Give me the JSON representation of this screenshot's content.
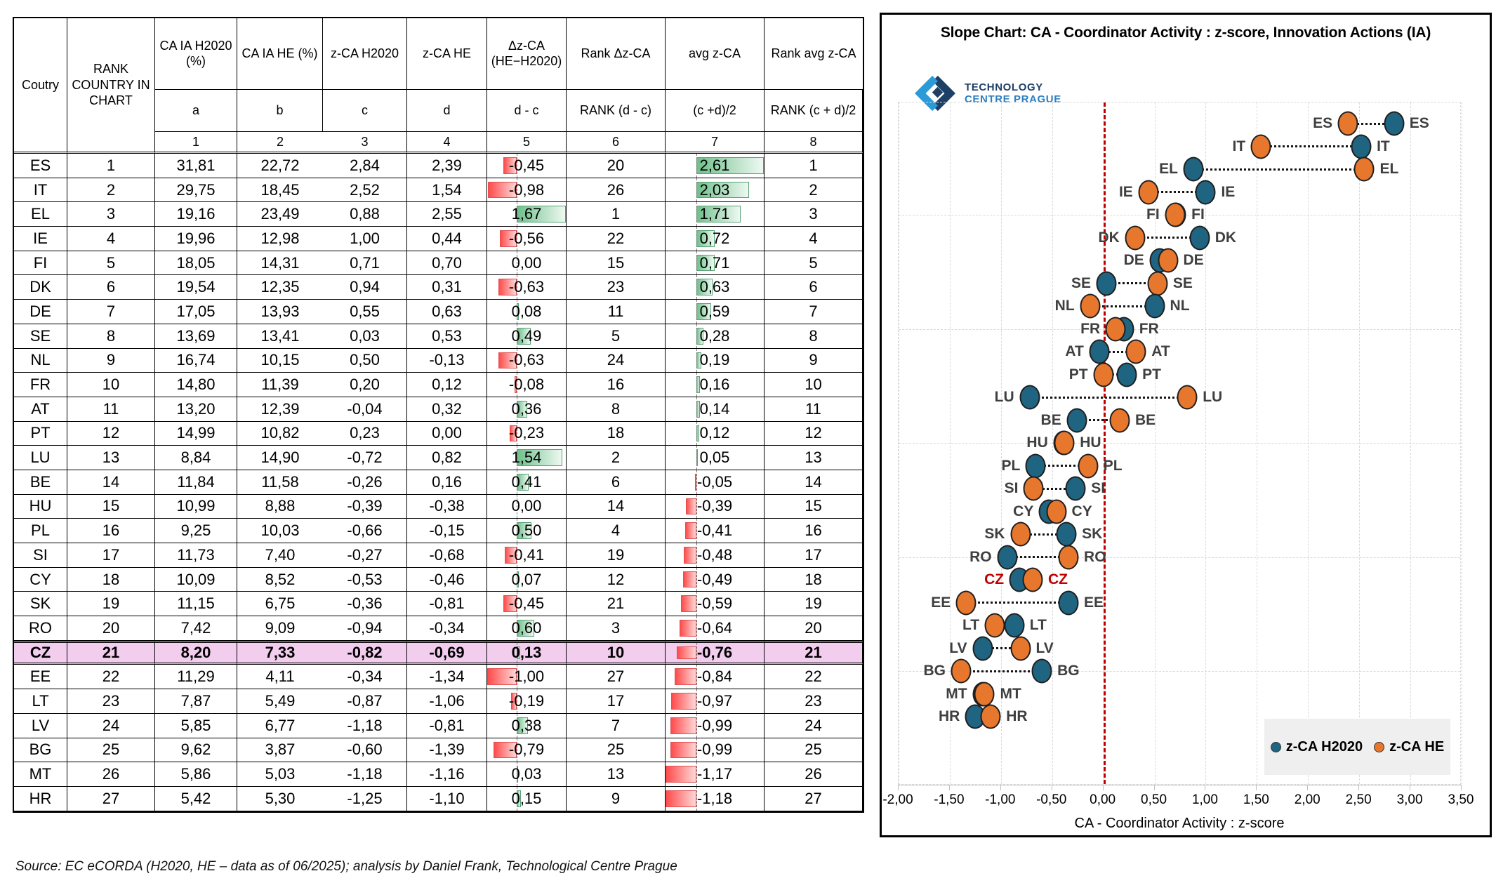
{
  "source_note": "Source: EC eCORDA (H2020, HE – data as of 06/2025); analysis by Daniel Frank, Technological Centre Prague",
  "logo": {
    "line1": "TECHNOLOGY",
    "line2": "CENTRE PRAGUE"
  },
  "colors": {
    "h2020": "#1f6480",
    "he": "#e8772e",
    "highlight_row": "#f2cdee",
    "cz_label": "#c00000",
    "red_line": "#c00000",
    "label": "#3f3f3f"
  },
  "table": {
    "header": {
      "col1": "Coutry",
      "col2": "RANK COUNTRY IN CHART",
      "cols": [
        {
          "title": "CA IA H2020 (%)",
          "sub": "a",
          "num": "1"
        },
        {
          "title": "CA IA HE (%)",
          "sub": "b",
          "num": "2"
        },
        {
          "title": "z-CA H2020",
          "sub": "c",
          "num": "3"
        },
        {
          "title": "z-CA HE",
          "sub": "d",
          "num": "4"
        },
        {
          "title": "Δz-CA (HE−H2020)",
          "sub": "d - c",
          "num": "5"
        },
        {
          "title": "Rank Δz-CA",
          "sub": "RANK (d - c)",
          "num": "6"
        },
        {
          "title": "avg z-CA",
          "sub": "(c +d)/2",
          "num": "7"
        },
        {
          "title": "Rank avg z-CA",
          "sub": "RANK (c + d)/2",
          "num": "8"
        }
      ]
    },
    "highlight_country": "CZ",
    "rows": [
      {
        "code": "ES",
        "rank": "1",
        "cells": [
          "31,81",
          "22,72",
          "2,84",
          "2,39",
          "-0,45",
          "20",
          "2,61",
          "1"
        ]
      },
      {
        "code": "IT",
        "rank": "2",
        "cells": [
          "29,75",
          "18,45",
          "2,52",
          "1,54",
          "-0,98",
          "26",
          "2,03",
          "2"
        ]
      },
      {
        "code": "EL",
        "rank": "3",
        "cells": [
          "19,16",
          "23,49",
          "0,88",
          "2,55",
          "1,67",
          "1",
          "1,71",
          "3"
        ]
      },
      {
        "code": "IE",
        "rank": "4",
        "cells": [
          "19,96",
          "12,98",
          "1,00",
          "0,44",
          "-0,56",
          "22",
          "0,72",
          "4"
        ]
      },
      {
        "code": "FI",
        "rank": "5",
        "cells": [
          "18,05",
          "14,31",
          "0,71",
          "0,70",
          "0,00",
          "15",
          "0,71",
          "5"
        ]
      },
      {
        "code": "DK",
        "rank": "6",
        "cells": [
          "19,54",
          "12,35",
          "0,94",
          "0,31",
          "-0,63",
          "23",
          "0,63",
          "6"
        ]
      },
      {
        "code": "DE",
        "rank": "7",
        "cells": [
          "17,05",
          "13,93",
          "0,55",
          "0,63",
          "0,08",
          "11",
          "0,59",
          "7"
        ]
      },
      {
        "code": "SE",
        "rank": "8",
        "cells": [
          "13,69",
          "13,41",
          "0,03",
          "0,53",
          "0,49",
          "5",
          "0,28",
          "8"
        ]
      },
      {
        "code": "NL",
        "rank": "9",
        "cells": [
          "16,74",
          "10,15",
          "0,50",
          "-0,13",
          "-0,63",
          "24",
          "0,19",
          "9"
        ]
      },
      {
        "code": "FR",
        "rank": "10",
        "cells": [
          "14,80",
          "11,39",
          "0,20",
          "0,12",
          "-0,08",
          "16",
          "0,16",
          "10"
        ]
      },
      {
        "code": "AT",
        "rank": "11",
        "cells": [
          "13,20",
          "12,39",
          "-0,04",
          "0,32",
          "0,36",
          "8",
          "0,14",
          "11"
        ]
      },
      {
        "code": "PT",
        "rank": "12",
        "cells": [
          "14,99",
          "10,82",
          "0,23",
          "0,00",
          "-0,23",
          "18",
          "0,12",
          "12"
        ]
      },
      {
        "code": "LU",
        "rank": "13",
        "cells": [
          "8,84",
          "14,90",
          "-0,72",
          "0,82",
          "1,54",
          "2",
          "0,05",
          "13"
        ]
      },
      {
        "code": "BE",
        "rank": "14",
        "cells": [
          "11,84",
          "11,58",
          "-0,26",
          "0,16",
          "0,41",
          "6",
          "-0,05",
          "14"
        ]
      },
      {
        "code": "HU",
        "rank": "15",
        "cells": [
          "10,99",
          "8,88",
          "-0,39",
          "-0,38",
          "0,00",
          "14",
          "-0,39",
          "15"
        ]
      },
      {
        "code": "PL",
        "rank": "16",
        "cells": [
          "9,25",
          "10,03",
          "-0,66",
          "-0,15",
          "0,50",
          "4",
          "-0,41",
          "16"
        ]
      },
      {
        "code": "SI",
        "rank": "17",
        "cells": [
          "11,73",
          "7,40",
          "-0,27",
          "-0,68",
          "-0,41",
          "19",
          "-0,48",
          "17"
        ]
      },
      {
        "code": "CY",
        "rank": "18",
        "cells": [
          "10,09",
          "8,52",
          "-0,53",
          "-0,46",
          "0,07",
          "12",
          "-0,49",
          "18"
        ]
      },
      {
        "code": "SK",
        "rank": "19",
        "cells": [
          "11,15",
          "6,75",
          "-0,36",
          "-0,81",
          "-0,45",
          "21",
          "-0,59",
          "19"
        ]
      },
      {
        "code": "RO",
        "rank": "20",
        "cells": [
          "7,42",
          "9,09",
          "-0,94",
          "-0,34",
          "0,60",
          "3",
          "-0,64",
          "20"
        ]
      },
      {
        "code": "CZ",
        "rank": "21",
        "cells": [
          "8,20",
          "7,33",
          "-0,82",
          "-0,69",
          "0,13",
          "10",
          "-0,76",
          "21"
        ]
      },
      {
        "code": "EE",
        "rank": "22",
        "cells": [
          "11,29",
          "4,11",
          "-0,34",
          "-1,34",
          "-1,00",
          "27",
          "-0,84",
          "22"
        ]
      },
      {
        "code": "LT",
        "rank": "23",
        "cells": [
          "7,87",
          "5,49",
          "-0,87",
          "-1,06",
          "-0,19",
          "17",
          "-0,97",
          "23"
        ]
      },
      {
        "code": "LV",
        "rank": "24",
        "cells": [
          "5,85",
          "6,77",
          "-1,18",
          "-0,81",
          "0,38",
          "7",
          "-0,99",
          "24"
        ]
      },
      {
        "code": "BG",
        "rank": "25",
        "cells": [
          "9,62",
          "3,87",
          "-0,60",
          "-1,39",
          "-0,79",
          "25",
          "-0,99",
          "25"
        ]
      },
      {
        "code": "MT",
        "rank": "26",
        "cells": [
          "5,86",
          "5,03",
          "-1,18",
          "-1,16",
          "0,03",
          "13",
          "-1,17",
          "26"
        ]
      },
      {
        "code": "HR",
        "rank": "27",
        "cells": [
          "5,42",
          "5,30",
          "-1,25",
          "-1,10",
          "0,15",
          "9",
          "-1,18",
          "27"
        ]
      }
    ]
  },
  "chart_data": {
    "type": "scatter",
    "subtype": "slope-dot-plot",
    "title": "Slope Chart: CA - Coordinator Activity : z-score, Innovation Actions (IA)",
    "xlabel": "CA - Coordinator Activity : z-score",
    "xlim": [
      -2.0,
      3.5
    ],
    "x_tick_step": 0.5,
    "x_ticks": [
      "-2,00",
      "-1,50",
      "-1,00",
      "-0,50",
      "0,00",
      "0,50",
      "1,00",
      "1,50",
      "2,00",
      "2,50",
      "3,00",
      "3,50"
    ],
    "grid": "dashed, vertical every 0.5, horizontal every 5 countries",
    "zero_reference_line": 0.0,
    "legend_position": "bottom-right",
    "legend": [
      {
        "label": "z-CA H2020",
        "color": "#1f6480"
      },
      {
        "label": "z-CA HE",
        "color": "#e8772e"
      }
    ],
    "highlight_country": "CZ",
    "countries": [
      {
        "code": "ES",
        "h2020": 2.84,
        "he": 2.39
      },
      {
        "code": "IT",
        "h2020": 2.52,
        "he": 1.54
      },
      {
        "code": "EL",
        "h2020": 0.88,
        "he": 2.55
      },
      {
        "code": "IE",
        "h2020": 1.0,
        "he": 0.44
      },
      {
        "code": "FI",
        "h2020": 0.71,
        "he": 0.7
      },
      {
        "code": "DK",
        "h2020": 0.94,
        "he": 0.31
      },
      {
        "code": "DE",
        "h2020": 0.55,
        "he": 0.63
      },
      {
        "code": "SE",
        "h2020": 0.03,
        "he": 0.53
      },
      {
        "code": "NL",
        "h2020": 0.5,
        "he": -0.13
      },
      {
        "code": "FR",
        "h2020": 0.2,
        "he": 0.12
      },
      {
        "code": "AT",
        "h2020": -0.04,
        "he": 0.32
      },
      {
        "code": "PT",
        "h2020": 0.23,
        "he": 0.0
      },
      {
        "code": "LU",
        "h2020": -0.72,
        "he": 0.82
      },
      {
        "code": "BE",
        "h2020": -0.26,
        "he": 0.16
      },
      {
        "code": "HU",
        "h2020": -0.39,
        "he": -0.38
      },
      {
        "code": "PL",
        "h2020": -0.66,
        "he": -0.15
      },
      {
        "code": "SI",
        "h2020": -0.27,
        "he": -0.68
      },
      {
        "code": "CY",
        "h2020": -0.53,
        "he": -0.46
      },
      {
        "code": "SK",
        "h2020": -0.36,
        "he": -0.81
      },
      {
        "code": "RO",
        "h2020": -0.94,
        "he": -0.34
      },
      {
        "code": "CZ",
        "h2020": -0.82,
        "he": -0.69
      },
      {
        "code": "EE",
        "h2020": -0.34,
        "he": -1.34
      },
      {
        "code": "LT",
        "h2020": -0.87,
        "he": -1.06
      },
      {
        "code": "LV",
        "h2020": -1.18,
        "he": -0.81
      },
      {
        "code": "BG",
        "h2020": -0.6,
        "he": -1.39
      },
      {
        "code": "MT",
        "h2020": -1.18,
        "he": -1.16
      },
      {
        "code": "HR",
        "h2020": -1.25,
        "he": -1.1
      }
    ]
  }
}
